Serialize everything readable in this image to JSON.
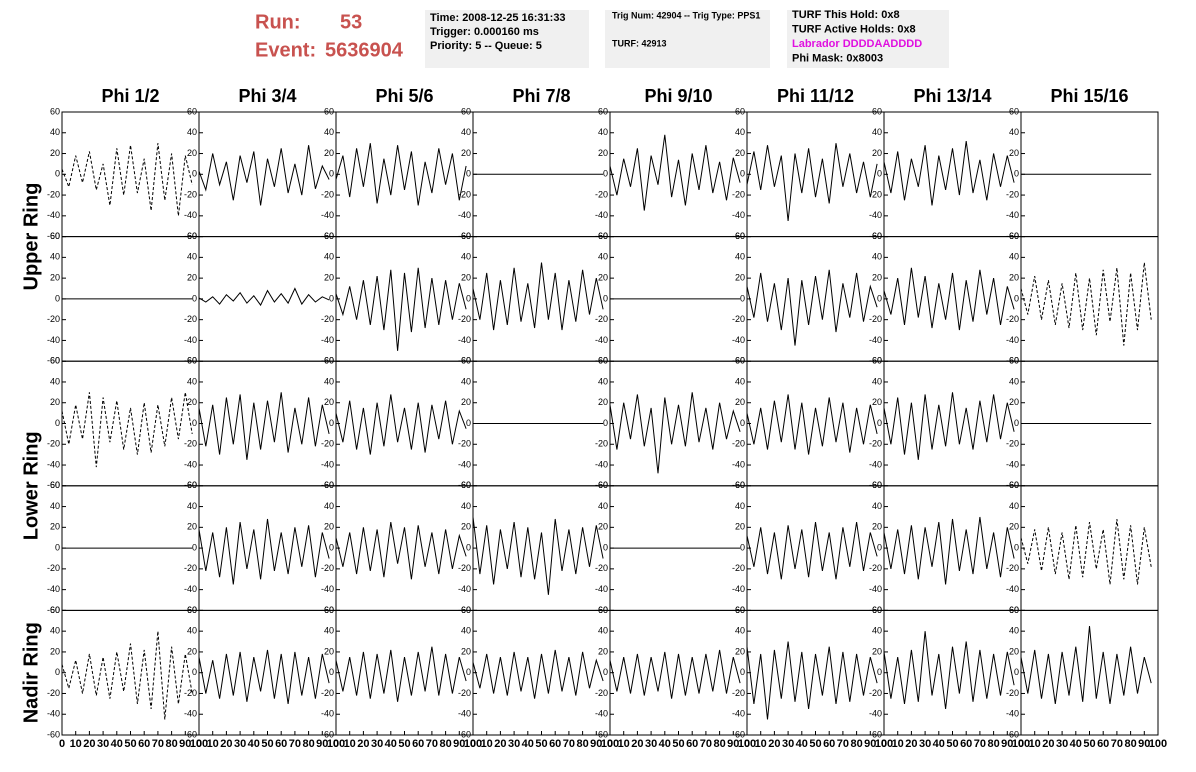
{
  "header": {
    "run_label": "Run:",
    "run": "53",
    "event_label": "Event:",
    "event": "5636904"
  },
  "info": {
    "boxes": [
      {
        "lines": [
          {
            "text": "Time: 2008-12-25 16:31:33"
          },
          {
            "text": "Trigger: 0.000160 ms"
          },
          {
            "text": "Priority: 5 -- Queue: 5"
          }
        ]
      },
      {
        "lines": [
          {
            "text": "Trig Num: 42904 -- Trig Type: PPS1"
          },
          {
            "text": "TURF: 42913"
          }
        ]
      },
      {
        "lines": [
          {
            "text": "TURF This Hold: 0x8"
          },
          {
            "text": "TURF Active Holds: 0x8"
          },
          {
            "text": "Labrador DDDDAADDDD",
            "color": "#e010e0"
          },
          {
            "text": "Phi Mask: 0x8003"
          }
        ]
      }
    ]
  },
  "chart_data": {
    "type": "line",
    "columns": [
      "Phi 1/2",
      "Phi 3/4",
      "Phi 5/6",
      "Phi 7/8",
      "Phi 9/10",
      "Phi 11/12",
      "Phi 13/14",
      "Phi 15/16"
    ],
    "rings": [
      "Upper Ring",
      "Lower Ring",
      "Nadir Ring"
    ],
    "x": [
      0,
      5,
      10,
      15,
      20,
      25,
      30,
      35,
      40,
      45,
      50,
      55,
      60,
      65,
      70,
      75,
      80,
      85,
      90,
      95
    ],
    "xlim": [
      0,
      100
    ],
    "xticks": [
      0,
      10,
      20,
      30,
      40,
      50,
      60,
      70,
      80,
      90,
      100
    ],
    "ylim": [
      -60,
      60
    ],
    "yticks": [
      -60,
      -40,
      -20,
      0,
      20,
      40,
      60
    ],
    "color": "#000000",
    "panels": [
      [
        {
          "style": "dashed",
          "values": [
            5,
            -12,
            18,
            -8,
            22,
            -15,
            10,
            -30,
            25,
            -20,
            28,
            -18,
            15,
            -35,
            30,
            -25,
            20,
            -40,
            18,
            -10
          ]
        },
        {
          "style": "solid",
          "values": [
            3,
            -15,
            20,
            -10,
            12,
            -25,
            18,
            -8,
            22,
            -30,
            15,
            -12,
            25,
            -18,
            10,
            -20,
            28,
            -14,
            8,
            -5
          ]
        },
        {
          "style": "solid",
          "values": [
            -5,
            18,
            -22,
            25,
            -12,
            30,
            -28,
            15,
            -20,
            28,
            -15,
            22,
            -30,
            12,
            -18,
            25,
            -10,
            20,
            -25,
            8
          ]
        },
        {
          "style": "solid",
          "values": [
            0,
            0,
            0,
            0,
            0,
            0,
            0,
            0,
            0,
            0,
            0,
            0,
            0,
            0,
            0,
            0,
            0,
            0,
            0,
            0
          ]
        },
        {
          "style": "solid",
          "values": [
            8,
            -20,
            15,
            -12,
            25,
            -35,
            18,
            -10,
            38,
            -22,
            14,
            -30,
            20,
            -15,
            28,
            -18,
            12,
            -25,
            16,
            -8
          ]
        },
        {
          "style": "solid",
          "values": [
            -10,
            22,
            -15,
            28,
            -12,
            18,
            -45,
            20,
            -18,
            25,
            -22,
            15,
            -28,
            30,
            -12,
            20,
            -18,
            12,
            -22,
            10
          ]
        },
        {
          "style": "solid",
          "values": [
            12,
            -18,
            22,
            -25,
            15,
            -12,
            28,
            -30,
            18,
            -15,
            25,
            -20,
            32,
            -18,
            14,
            -25,
            20,
            -12,
            18,
            -8
          ]
        },
        {
          "style": "solid",
          "values": [
            0,
            0,
            0,
            0,
            0,
            0,
            0,
            0,
            0,
            0,
            0,
            0,
            0,
            0,
            0,
            0,
            0,
            0,
            0,
            0
          ]
        }
      ],
      [
        {
          "style": "solid",
          "values": [
            0,
            0,
            0,
            0,
            0,
            0,
            0,
            0,
            0,
            0,
            0,
            0,
            0,
            0,
            0,
            0,
            0,
            0,
            0,
            0
          ]
        },
        {
          "style": "solid",
          "values": [
            1,
            -3,
            2,
            -5,
            4,
            -2,
            6,
            -4,
            3,
            -6,
            8,
            -3,
            5,
            -4,
            10,
            -5,
            4,
            -3,
            2,
            -1
          ]
        },
        {
          "style": "solid",
          "values": [
            5,
            -15,
            12,
            -20,
            18,
            -25,
            22,
            -30,
            28,
            -50,
            25,
            -32,
            30,
            -28,
            20,
            -25,
            18,
            -20,
            15,
            -10
          ]
        },
        {
          "style": "solid",
          "values": [
            10,
            -20,
            25,
            -30,
            18,
            -25,
            30,
            -22,
            15,
            -28,
            35,
            -20,
            25,
            -30,
            18,
            -22,
            28,
            -15,
            20,
            -10
          ]
        },
        {
          "style": "solid",
          "values": [
            0,
            0,
            0,
            0,
            0,
            0,
            0,
            0,
            0,
            0,
            0,
            0,
            0,
            0,
            0,
            0,
            0,
            0,
            0,
            0
          ]
        },
        {
          "style": "solid",
          "values": [
            12,
            -18,
            25,
            -22,
            15,
            -30,
            20,
            -45,
            18,
            -25,
            22,
            -20,
            28,
            -32,
            15,
            -18,
            25,
            -22,
            12,
            -8
          ]
        },
        {
          "style": "solid",
          "values": [
            8,
            -15,
            20,
            -25,
            30,
            -18,
            22,
            -28,
            15,
            -20,
            25,
            -30,
            18,
            -22,
            28,
            -15,
            20,
            -25,
            12,
            -10
          ]
        },
        {
          "style": "dashed",
          "values": [
            10,
            -15,
            22,
            -20,
            18,
            -25,
            15,
            -28,
            25,
            -30,
            20,
            -35,
            28,
            -22,
            30,
            -45,
            25,
            -30,
            35,
            -20
          ]
        }
      ],
      [
        {
          "style": "dashed",
          "values": [
            12,
            -20,
            18,
            -15,
            30,
            -42,
            25,
            -18,
            22,
            -25,
            15,
            -30,
            20,
            -28,
            18,
            -22,
            25,
            -15,
            30,
            -10
          ]
        },
        {
          "style": "solid",
          "values": [
            15,
            -22,
            18,
            -30,
            25,
            -20,
            28,
            -35,
            20,
            -25,
            22,
            -18,
            30,
            -28,
            15,
            -20,
            25,
            -22,
            18,
            -10
          ]
        },
        {
          "style": "solid",
          "values": [
            10,
            -18,
            22,
            -25,
            15,
            -30,
            20,
            -22,
            28,
            -18,
            15,
            -25,
            20,
            -28,
            18,
            -15,
            22,
            -20,
            12,
            -5
          ]
        },
        {
          "style": "solid",
          "values": [
            0,
            0,
            0,
            0,
            0,
            0,
            0,
            0,
            0,
            0,
            0,
            0,
            0,
            0,
            0,
            0,
            0,
            0,
            0,
            0
          ]
        },
        {
          "style": "solid",
          "values": [
            18,
            -25,
            20,
            -15,
            28,
            -22,
            15,
            -48,
            25,
            -20,
            18,
            -22,
            30,
            -18,
            15,
            -25,
            20,
            -15,
            12,
            -8
          ]
        },
        {
          "style": "solid",
          "values": [
            10,
            -20,
            15,
            -25,
            22,
            -18,
            28,
            -25,
            20,
            -30,
            15,
            -22,
            25,
            -18,
            20,
            -28,
            15,
            -20,
            18,
            -10
          ]
        },
        {
          "style": "solid",
          "values": [
            15,
            -20,
            25,
            -30,
            20,
            -35,
            28,
            -25,
            18,
            -22,
            30,
            -20,
            15,
            -25,
            22,
            -18,
            28,
            -15,
            20,
            -8
          ]
        },
        {
          "style": "solid",
          "values": [
            0,
            0,
            0,
            0,
            0,
            0,
            0,
            0,
            0,
            0,
            0,
            0,
            0,
            0,
            0,
            0,
            0,
            0,
            0,
            0
          ]
        }
      ],
      [
        {
          "style": "solid",
          "values": [
            0,
            0,
            0,
            0,
            0,
            0,
            0,
            0,
            0,
            0,
            0,
            0,
            0,
            0,
            0,
            0,
            0,
            0,
            0,
            0
          ]
        },
        {
          "style": "solid",
          "values": [
            18,
            -22,
            15,
            -28,
            20,
            -35,
            25,
            -20,
            18,
            -30,
            28,
            -22,
            15,
            -25,
            20,
            -18,
            22,
            -28,
            15,
            -10
          ]
        },
        {
          "style": "solid",
          "values": [
            10,
            -18,
            15,
            -25,
            20,
            -22,
            18,
            -28,
            25,
            -15,
            20,
            -30,
            22,
            -18,
            15,
            -25,
            18,
            -20,
            12,
            -8
          ]
        },
        {
          "style": "solid",
          "values": [
            30,
            -25,
            22,
            -35,
            18,
            -20,
            25,
            -28,
            20,
            -30,
            15,
            -45,
            28,
            -22,
            18,
            -25,
            20,
            -18,
            22,
            -10
          ]
        },
        {
          "style": "solid",
          "values": [
            0,
            0,
            0,
            0,
            0,
            0,
            0,
            0,
            0,
            0,
            0,
            0,
            0,
            0,
            0,
            0,
            0,
            0,
            0,
            0
          ]
        },
        {
          "style": "solid",
          "values": [
            12,
            -18,
            20,
            -25,
            15,
            -30,
            22,
            -20,
            18,
            -28,
            25,
            -22,
            15,
            -30,
            20,
            -18,
            25,
            -22,
            15,
            -8
          ]
        },
        {
          "style": "solid",
          "values": [
            15,
            -20,
            18,
            -25,
            22,
            -30,
            20,
            -18,
            25,
            -35,
            28,
            -22,
            18,
            -25,
            30,
            -20,
            15,
            -28,
            20,
            -10
          ]
        },
        {
          "style": "dashed",
          "values": [
            10,
            -15,
            18,
            -22,
            20,
            -25,
            15,
            -30,
            22,
            -28,
            25,
            -20,
            18,
            -35,
            28,
            -30,
            22,
            -35,
            20,
            -18
          ]
        }
      ],
      [
        {
          "style": "dashed",
          "values": [
            8,
            -15,
            12,
            -20,
            18,
            -22,
            15,
            -25,
            20,
            -18,
            28,
            -30,
            22,
            -35,
            40,
            -45,
            25,
            -30,
            18,
            -20
          ]
        },
        {
          "style": "solid",
          "values": [
            15,
            -20,
            12,
            -25,
            18,
            -22,
            20,
            -28,
            15,
            -18,
            22,
            -25,
            18,
            -30,
            20,
            -22,
            15,
            -25,
            18,
            -10
          ]
        },
        {
          "style": "solid",
          "values": [
            12,
            -18,
            15,
            -22,
            20,
            -25,
            18,
            -20,
            22,
            -28,
            15,
            -22,
            20,
            -18,
            25,
            -22,
            18,
            -20,
            15,
            -8
          ]
        },
        {
          "style": "solid",
          "values": [
            10,
            -15,
            18,
            -20,
            15,
            -22,
            20,
            -18,
            15,
            -25,
            18,
            -20,
            22,
            -18,
            15,
            -22,
            20,
            -15,
            12,
            -8
          ]
        },
        {
          "style": "solid",
          "values": [
            12,
            -18,
            15,
            -20,
            18,
            -22,
            15,
            -18,
            20,
            -25,
            18,
            -22,
            15,
            -20,
            18,
            -18,
            22,
            -20,
            15,
            -10
          ]
        },
        {
          "style": "solid",
          "values": [
            25,
            -30,
            18,
            -45,
            22,
            -25,
            30,
            -28,
            20,
            -35,
            18,
            -22,
            25,
            -30,
            20,
            -28,
            18,
            -22,
            15,
            -10
          ]
        },
        {
          "style": "solid",
          "values": [
            20,
            -25,
            15,
            -30,
            22,
            -28,
            40,
            -22,
            18,
            -35,
            25,
            -20,
            30,
            -28,
            22,
            -25,
            18,
            -22,
            20,
            -12
          ]
        },
        {
          "style": "solid",
          "values": [
            15,
            -20,
            22,
            -25,
            18,
            -30,
            20,
            -22,
            25,
            -28,
            45,
            -25,
            20,
            -30,
            18,
            -22,
            25,
            -20,
            15,
            -10
          ]
        }
      ]
    ]
  }
}
